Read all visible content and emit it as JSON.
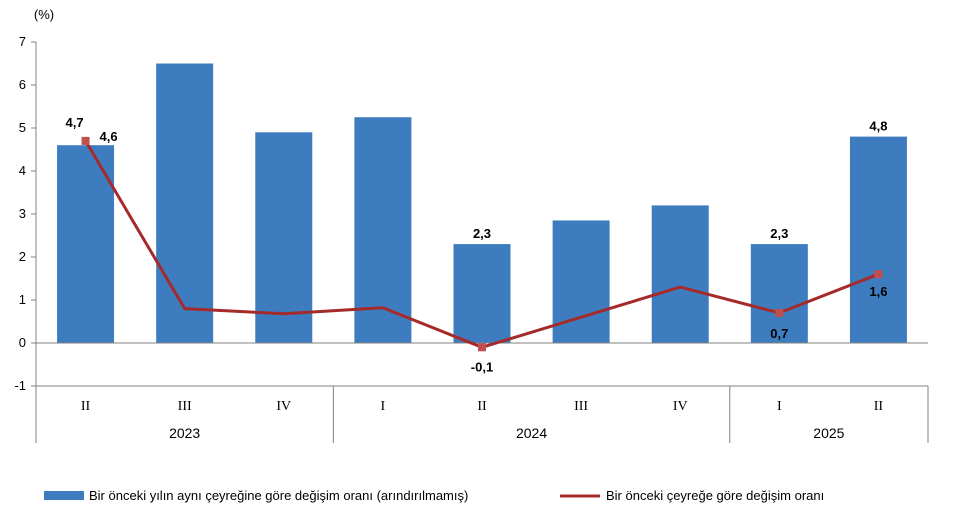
{
  "chart_data": {
    "type": "bar",
    "ylabel": "(%)",
    "ylim": [
      -1,
      7
    ],
    "yticks": [
      7,
      6,
      5,
      4,
      3,
      2,
      1,
      0,
      -1
    ],
    "grid": false,
    "legend_position": "bottom",
    "categories": [
      "II",
      "III",
      "IV",
      "I",
      "II",
      "III",
      "IV",
      "I",
      "II"
    ],
    "groups": [
      {
        "label": "2023",
        "count": 3
      },
      {
        "label": "2024",
        "count": 4
      },
      {
        "label": "2025",
        "count": 2
      }
    ],
    "series": [
      {
        "name": "Bir önceki yılın aynı çeyreğine göre değişim oranı (arındırılmamış)",
        "type": "bar",
        "color": "#3e7cc0",
        "values": [
          4.6,
          6.5,
          4.9,
          5.25,
          2.3,
          2.85,
          3.2,
          2.3,
          4.8
        ],
        "labels": [
          "4,6",
          "",
          "",
          "",
          "2,3",
          "",
          "",
          "2,3",
          "4,8"
        ]
      },
      {
        "name": "Bir önceki çeyreğe göre değişim oranı",
        "type": "line",
        "color": "#a52a2a",
        "values": [
          4.7,
          0.8,
          0.68,
          0.82,
          -0.1,
          0.6,
          1.3,
          0.7,
          1.6
        ],
        "labels": [
          "4,7",
          "",
          "",
          "",
          "-0,1",
          "",
          "",
          "0,7",
          "1,6"
        ],
        "markers": [
          true,
          false,
          false,
          false,
          true,
          false,
          false,
          true,
          true
        ]
      }
    ]
  }
}
